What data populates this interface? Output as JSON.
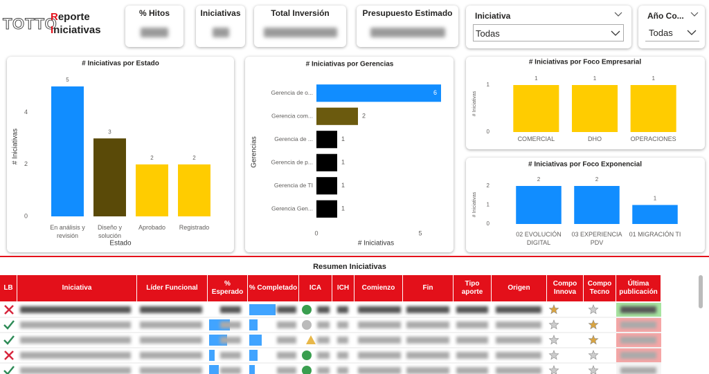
{
  "header": {
    "logo": "TOTTO",
    "title_line1": "Reporte",
    "title_line2": "Iniciativas"
  },
  "kpis": [
    "% Hitos",
    "Iniciativas",
    "Total Inversión",
    "Presupuesto Estimado"
  ],
  "filters": [
    {
      "label": "Iniciativa",
      "value": "Todas"
    },
    {
      "label": "Año Co...",
      "value": "Todas"
    }
  ],
  "chart_data": [
    {
      "type": "bar",
      "title": "# Iniciativas por Estado",
      "categories": [
        "En análisis y revisión",
        "Diseño y solución",
        "Aprobado",
        "Registrado"
      ],
      "values": [
        5,
        3,
        2,
        2
      ],
      "colors": [
        "#118DFF",
        "#5A4A08",
        "#FFCC00",
        "#FFCC00"
      ],
      "ylim": [
        0,
        5.4
      ],
      "yticks": [
        0,
        2,
        4
      ],
      "xlabel": "Estado",
      "ylabel": "# Iniciativas"
    },
    {
      "type": "bar",
      "orientation": "horizontal",
      "title": "# Iniciativas por Gerencias",
      "categories": [
        "Gerencia de o...",
        "Gerencia com...",
        "Gerencia de ...",
        "Gerencia de p...",
        "Gerencia de TI",
        "Gerencia Gen..."
      ],
      "values": [
        6,
        2,
        1,
        1,
        1,
        1
      ],
      "colors": [
        "#118DFF",
        "#6B5A0E",
        "#000000",
        "#000000",
        "#000000",
        "#000000"
      ],
      "xlim": [
        0,
        6
      ],
      "xticks": [
        0,
        5
      ],
      "xlabel": "# Iniciativas",
      "ylabel": "Gerencias"
    },
    {
      "type": "bar",
      "title": "# Iniciativas por Foco Empresarial",
      "categories": [
        "COMERCIAL",
        "DHO",
        "OPERACIONES"
      ],
      "values": [
        1,
        1,
        1
      ],
      "colors": [
        "#FFCC00",
        "#FFCC00",
        "#FFCC00"
      ],
      "ylim": [
        0,
        1.15
      ],
      "yticks": [
        0,
        1
      ],
      "ylabel": "# Iniciativas"
    },
    {
      "type": "bar",
      "title": "# Iniciativas por Foco Exponencial",
      "categories": [
        "02 EVOLUCIÓN DIGITAL",
        "03 EXPERIENCIA PDV",
        "01 MIGRACIÓN TI"
      ],
      "values": [
        2,
        2,
        1
      ],
      "colors": [
        "#118DFF",
        "#118DFF",
        "#118DFF"
      ],
      "ylim": [
        0,
        2.2
      ],
      "yticks": [
        0,
        1,
        2
      ],
      "ylabel": "# Iniciativas"
    }
  ],
  "table": {
    "title": "Resumen Iniciativas",
    "columns": [
      "LB",
      "Iniciativa",
      "Líder Funcional",
      "% Esperado",
      "% Completado",
      "ICA",
      "ICH",
      "Comienzo",
      "Fin",
      "Tipo aporte",
      "Origen",
      "Compo Innova",
      "Compo Tecno",
      "Última publicación"
    ]
  }
}
